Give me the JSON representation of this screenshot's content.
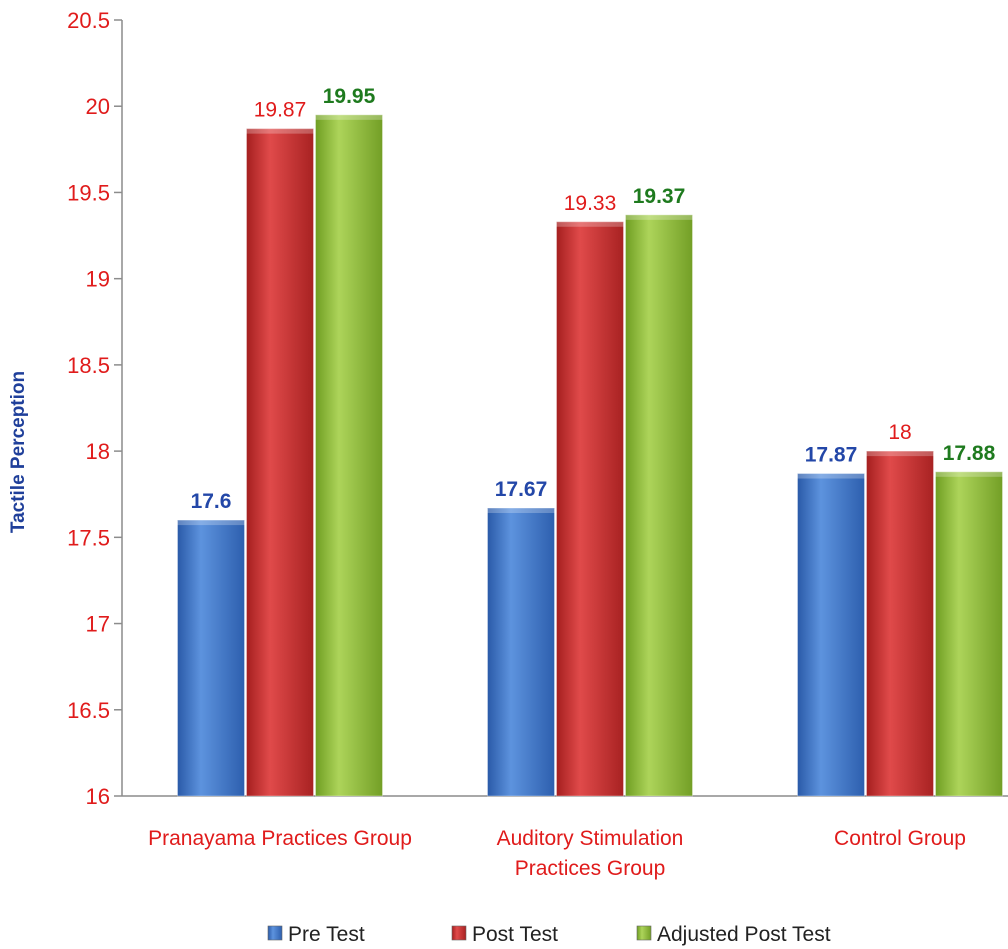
{
  "chart_data": {
    "type": "bar",
    "title": "",
    "xlabel": "",
    "ylabel": "Tactile Perception",
    "ylim": [
      16,
      20.5
    ],
    "yticks": [
      "16",
      "16.5",
      "17",
      "17.5",
      "18",
      "18.5",
      "19",
      "19.5",
      "20",
      "20.5"
    ],
    "grid": false,
    "legend_position": "bottom",
    "categories": [
      [
        "Pranayama Practices Group"
      ],
      [
        "Auditory Stimulation",
        "Practices Group"
      ],
      [
        "Control Group"
      ]
    ],
    "series": [
      {
        "name": "Pre Test",
        "color": "#3e74c6",
        "label_color": "#2347a8",
        "values": [
          17.6,
          17.67,
          17.87
        ],
        "labels": [
          "17.6",
          "17.67",
          "17.87"
        ]
      },
      {
        "name": "Post Test",
        "color": "#cc2d2d",
        "label_color": "#e01b1b",
        "values": [
          19.87,
          19.33,
          18
        ],
        "labels": [
          "19.87",
          "19.33",
          "18"
        ]
      },
      {
        "name": "Adjusted Post Test",
        "color": "#8fbf3a",
        "label_color": "#1e7a1e",
        "values": [
          19.95,
          19.37,
          17.88
        ],
        "labels": [
          "19.95",
          "19.37",
          "17.88"
        ]
      }
    ]
  }
}
